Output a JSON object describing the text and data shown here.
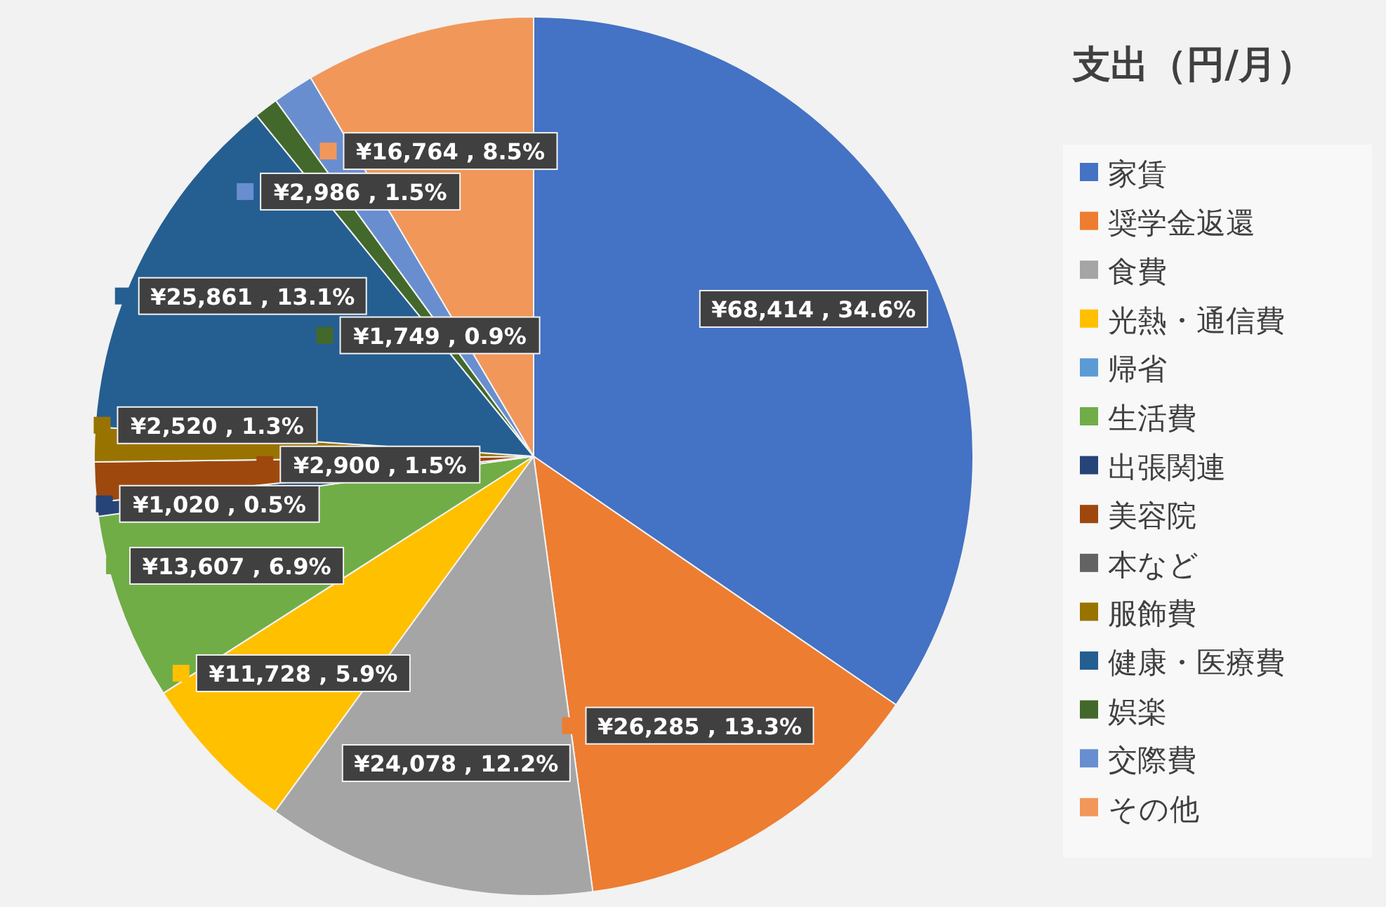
{
  "chart_data": {
    "type": "pie",
    "title": "支出（円/月）",
    "categories": [
      "家賃",
      "奨学金返還",
      "食費",
      "光熱・通信費",
      "帰省",
      "生活費",
      "出張関連",
      "美容院",
      "本など",
      "服飾費",
      "健康・医療費",
      "娯楽",
      "交際費",
      "その他"
    ],
    "values": [
      68414,
      26285,
      24078,
      11728,
      0,
      13607,
      1020,
      2900,
      0,
      2520,
      25861,
      1749,
      2986,
      16764
    ],
    "colors": [
      "#4472c4",
      "#ed7d31",
      "#a5a5a5",
      "#ffc000",
      "#5b9bd5",
      "#70ad47",
      "#264478",
      "#9e480e",
      "#636363",
      "#997300",
      "#255e91",
      "#43682b",
      "#698ed0",
      "#f1975a"
    ],
    "value_labels": [
      "¥68,414 , 34.6%",
      "¥26,285 , 13.3%",
      "¥24,078 , 12.2%",
      "¥11,728 , 5.9%",
      null,
      "¥13,607 , 6.9%",
      "¥1,020 , 0.5%",
      "¥2,900 , 1.5%",
      null,
      "¥2,520 , 1.3%",
      "¥25,861 , 13.1%",
      "¥1,749 , 0.9%",
      "¥2,986 , 1.5%",
      "¥16,764 , 8.5%"
    ],
    "legend": "right"
  }
}
